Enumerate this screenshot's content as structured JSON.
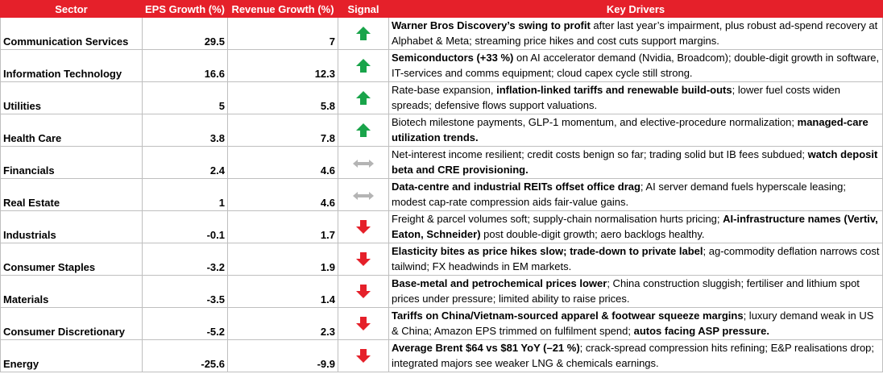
{
  "header": {
    "sector": "Sector",
    "eps": "EPS Growth (%)",
    "revenue": "Revenue Growth (%)",
    "signal": "Signal",
    "drivers": "Key Drivers"
  },
  "colors": {
    "header_bg": "#e5202a",
    "up": "#19a44a",
    "neutral": "#b4b4b4",
    "down": "#e5202a"
  },
  "rows": [
    {
      "sector": "Communication Services",
      "eps": "29.5",
      "revenue": "7",
      "signal": "up",
      "drivers": [
        {
          "t": "Warner Bros Discovery’s swing to profit",
          "b": true
        },
        {
          "t": " after last year’s impairment, plus robust ad-spend recovery at Alphabet & Meta; streaming price hikes and cost cuts support margins.",
          "b": false
        }
      ]
    },
    {
      "sector": "Information Technology",
      "eps": "16.6",
      "revenue": "12.3",
      "signal": "up",
      "drivers": [
        {
          "t": "Semiconductors (+33 %)",
          "b": true
        },
        {
          "t": " on AI accelerator demand (Nvidia, Broadcom); double-digit growth in software, IT-services and comms equipment; cloud capex cycle still strong.",
          "b": false
        }
      ]
    },
    {
      "sector": "Utilities",
      "eps": "5",
      "revenue": "5.8",
      "signal": "up",
      "drivers": [
        {
          "t": "Rate-base expansion, ",
          "b": false
        },
        {
          "t": "inflation-linked tariffs and renewable build-outs",
          "b": true
        },
        {
          "t": "; lower fuel costs widen spreads; defensive flows support valuations.",
          "b": false
        }
      ]
    },
    {
      "sector": "Health Care",
      "eps": "3.8",
      "revenue": "7.8",
      "signal": "up",
      "drivers": [
        {
          "t": "Biotech milestone payments, GLP-1 momentum, and elective-procedure normalization; ",
          "b": false
        },
        {
          "t": "managed-care utilization trends.",
          "b": true
        }
      ]
    },
    {
      "sector": "Financials",
      "eps": "2.4",
      "revenue": "4.6",
      "signal": "neutral",
      "drivers": [
        {
          "t": "Net-interest income resilient; credit costs benign so far; trading solid but IB fees subdued; ",
          "b": false
        },
        {
          "t": "watch deposit beta and CRE provisioning.",
          "b": true
        }
      ]
    },
    {
      "sector": "Real Estate",
      "eps": "1",
      "revenue": "4.6",
      "signal": "neutral",
      "drivers": [
        {
          "t": "Data-centre and industrial REITs offset office drag",
          "b": true
        },
        {
          "t": "; AI server demand fuels hyperscale leasing; modest cap-rate compression aids fair-value gains.",
          "b": false
        }
      ]
    },
    {
      "sector": "Industrials",
      "eps": "-0.1",
      "revenue": "1.7",
      "signal": "down",
      "drivers": [
        {
          "t": "Freight & parcel volumes soft; supply-chain normalisation hurts pricing; ",
          "b": false
        },
        {
          "t": "AI-infrastructure names (Vertiv, Eaton, Schneider)",
          "b": true
        },
        {
          "t": " post double-digit growth; aero backlogs healthy.",
          "b": false
        }
      ]
    },
    {
      "sector": "Consumer Staples",
      "eps": "-3.2",
      "revenue": "1.9",
      "signal": "down",
      "drivers": [
        {
          "t": "Elasticity bites as price hikes slow; trade-down to private label",
          "b": true
        },
        {
          "t": "; ag-commodity deflation narrows cost tailwind; FX headwinds in EM markets.",
          "b": false
        }
      ]
    },
    {
      "sector": "Materials",
      "eps": "-3.5",
      "revenue": "1.4",
      "signal": "down",
      "drivers": [
        {
          "t": "Base-metal and petrochemical prices lower",
          "b": true
        },
        {
          "t": "; China construction sluggish; fertiliser and lithium spot prices under pressure; limited ability to raise prices.",
          "b": false
        }
      ]
    },
    {
      "sector": "Consumer Discretionary",
      "eps": "-5.2",
      "revenue": "2.3",
      "signal": "down",
      "drivers": [
        {
          "t": "Tariffs on China/Vietnam-sourced apparel & footwear squeeze margins",
          "b": true
        },
        {
          "t": "; luxury demand weak in US & China; Amazon EPS trimmed on fulfilment spend; ",
          "b": false
        },
        {
          "t": "autos facing ASP pressure.",
          "b": true
        }
      ]
    },
    {
      "sector": "Energy",
      "eps": "-25.6",
      "revenue": "-9.9",
      "signal": "down",
      "drivers": [
        {
          "t": "Average Brent $64 vs $81 YoY (–21 %)",
          "b": true
        },
        {
          "t": "; crack-spread compression hits refining; E&P realisations drop; integrated majors see weaker LNG & chemicals earnings.",
          "b": false
        }
      ]
    }
  ]
}
